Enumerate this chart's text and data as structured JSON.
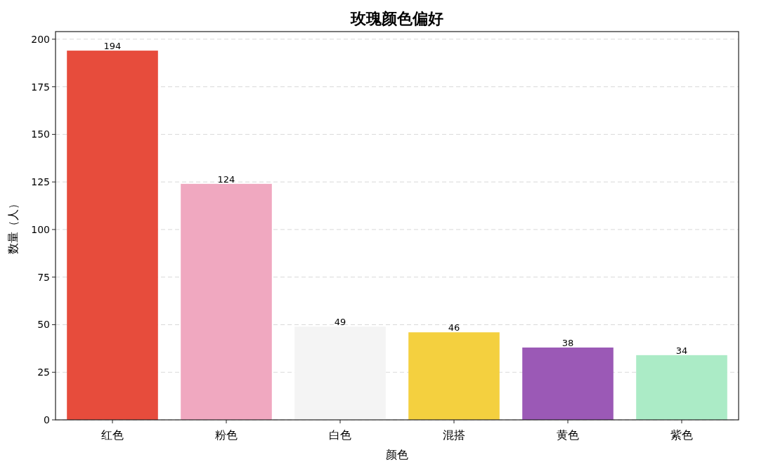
{
  "chart_data": {
    "type": "bar",
    "title": "玫瑰颜色偏好",
    "xlabel": "颜色",
    "ylabel": "数量（人）",
    "categories": [
      "红色",
      "粉色",
      "白色",
      "混搭",
      "黄色",
      "紫色"
    ],
    "values": [
      194,
      124,
      49,
      46,
      38,
      34
    ],
    "colors": [
      "#e74c3c",
      "#f0a8c0",
      "#f4f4f4",
      "#f4d03f",
      "#9b59b6",
      "#abebc6"
    ],
    "ylim": [
      0,
      204
    ],
    "yticks": [
      0,
      25,
      50,
      75,
      100,
      125,
      150,
      175,
      200
    ],
    "grid": "y",
    "data_labels": true
  }
}
